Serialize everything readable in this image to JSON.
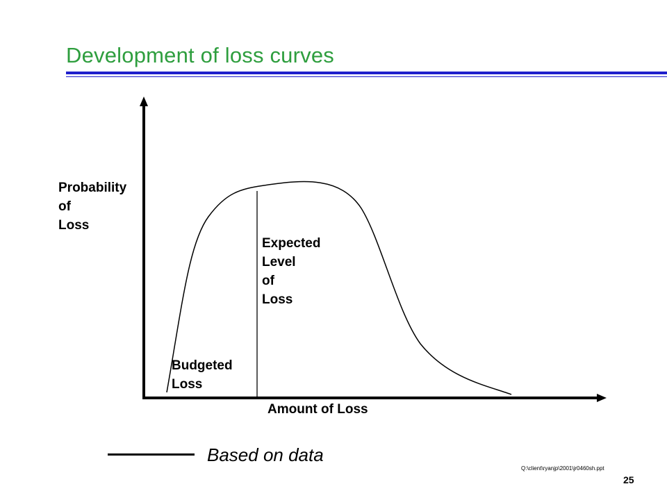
{
  "slide": {
    "title": "Development of loss curves",
    "page_number": "25",
    "file_path": "Q:\\client\\ryanjp\\2001\\jr0460sh.ppt"
  },
  "diagram": {
    "y_axis_label": [
      "Probability",
      "of",
      "Loss"
    ],
    "x_axis_label": "Amount of Loss",
    "expected_label": [
      "Expected",
      "Level",
      "of",
      "Loss"
    ],
    "budgeted_label": [
      "Budgeted",
      "Loss"
    ]
  },
  "legend": {
    "text": "Based on data"
  },
  "colors": {
    "title": "#2e9e3e",
    "rule": "#1f1fcc",
    "ink": "#000000"
  }
}
